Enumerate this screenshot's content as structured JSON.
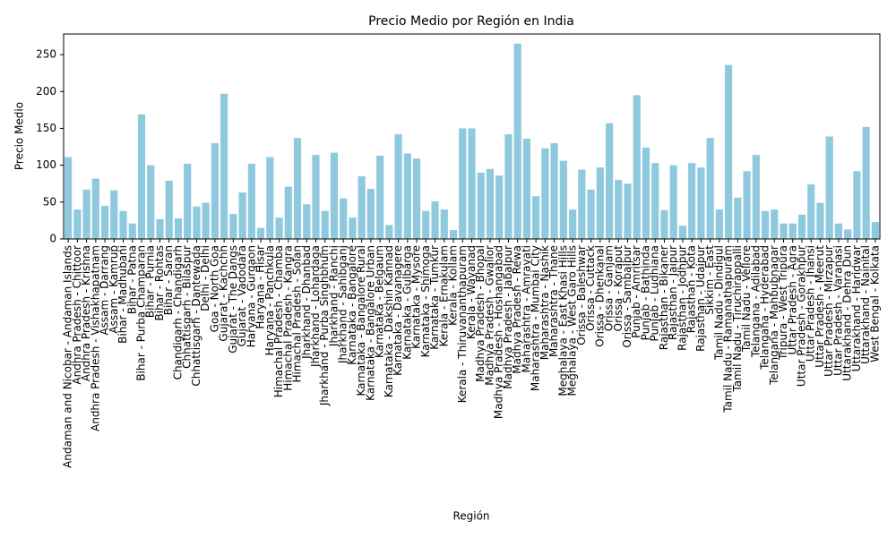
{
  "chart_data": {
    "type": "bar",
    "title": "Precio Medio por Región en India",
    "x_label": "Región",
    "y_label": "Precio Medio",
    "categories": [
      "Andaman and Nicobar - Andaman Islands",
      "Andhra Pradesh - Chittoor",
      "Andhra Pradesh - Krishna",
      "Andhra Pradesh - Vishakhapatnam",
      "Assam - Darrang",
      "Assam - Kamrup",
      "Bihar - Madhubani",
      "Bihar - Patna",
      "Bihar - Purba Champaran",
      "Bihar - Purnia",
      "Bihar - Rohtas",
      "Bihar - Saran",
      "Chandigarh - Chandigarh",
      "Chhattisgarh - Bilaspur",
      "Chhattisgarh - Dantewada",
      "Delhi - Delhi",
      "Goa - North Goa",
      "Gujarat - Kachchh",
      "Gujarat - The Dangs",
      "Gujarat - Vadodara",
      "Haryana - Gurgaon",
      "Haryana - Hisar",
      "Haryana - Panchkula",
      "Himachal Pradesh - Chamba",
      "Himachal Pradesh - Kangra",
      "Himachal Pradesh - Solan",
      "Jharkhand - Dhanbad",
      "Jharkhand - Lohardaga",
      "Jharkhand - Purba Singhbhum",
      "Jharkhand - Ranchi",
      "Jharkhand - Sahibganj",
      "Karnataka - Bangalore",
      "Karnataka - Bangalore Rural",
      "Karnataka - Bangalore Urban",
      "Karnataka - Belgaum",
      "Karnataka - Dakshin Kannad",
      "Karnataka - Davanagere",
      "Karnataka - Gulbarga",
      "Karnataka - Mysore",
      "Karnataka - Shimoga",
      "Karnataka - Tumkur",
      "Kerala - Ernakulam",
      "Kerala - Kollam",
      "Kerala - Thiruvananthapuram",
      "Kerala - Wayanad",
      "Madhya Pradesh - Bhopal",
      "Madhya Pradesh - Gwalior",
      "Madhya Pradesh - Hoshangabad",
      "Madhya Pradesh - Jabalpur",
      "Madhya Pradesh - Rewa",
      "Maharashtra - Amravati",
      "Maharashtra - Mumbai City",
      "Maharashtra - Nashik",
      "Maharashtra - Thane",
      "Meghalaya - East Khasi Hills",
      "Meghalaya - West Garo Hills",
      "Orissa - Baleshwar",
      "Orissa - Cuttack",
      "Orissa - Dhenkanal",
      "Orissa - Ganjam",
      "Orissa - Koraput",
      "Orissa - Sambalpur",
      "Punjab - Amritsar",
      "Punjab - Bathinda",
      "Punjab - Ludhiana",
      "Rajasthan - Bikaner",
      "Rajasthan - Jaipur",
      "Rajasthan - Jodhpur",
      "Rajasthan - Kota",
      "Rajasthan - Udaipur",
      "Sikkim - East",
      "Tamil Nadu - Dindigul",
      "Tamil Nadu - Ramanathapuram",
      "Tamil Nadu - Tiruchirappalli",
      "Tamil Nadu - Vellore",
      "Telangana - Adilabad",
      "Telangana - Hyderabad",
      "Telangana - Mahbubnagar",
      "Tripura - West Tripura",
      "Uttar Pradesh - Agra",
      "Uttar Pradesh - Gorakhpur",
      "Uttar Pradesh - Jhansi",
      "Uttar Pradesh - Meerut",
      "Uttar Pradesh - Mirzapur",
      "Uttar Pradesh - Varanasi",
      "Uttarakhand - Dehra Dun",
      "Uttarakhand - Haridwar",
      "Uttarakhand - Nainital",
      "West Bengal - Kolkata"
    ],
    "values": [
      111,
      40,
      67,
      82,
      45,
      66,
      38,
      21,
      169,
      100,
      27,
      79,
      28,
      102,
      44,
      49,
      130,
      197,
      34,
      63,
      102,
      15,
      111,
      29,
      71,
      137,
      47,
      114,
      38,
      117,
      55,
      29,
      85,
      68,
      113,
      19,
      142,
      116,
      109,
      38,
      51,
      40,
      12,
      150,
      150,
      90,
      95,
      86,
      142,
      265,
      136,
      58,
      123,
      130,
      106,
      40,
      94,
      67,
      97,
      157,
      80,
      75,
      195,
      124,
      103,
      39,
      100,
      18,
      103,
      97,
      137,
      40,
      236,
      56,
      92,
      114,
      38,
      40,
      21,
      21,
      33,
      74,
      49,
      139,
      21,
      13,
      92,
      152,
      23
    ],
    "color": "#8fc9de",
    "ylim": [
      0,
      278
    ],
    "yticks": [
      0,
      50,
      100,
      150,
      200,
      250
    ],
    "grid": false
  }
}
